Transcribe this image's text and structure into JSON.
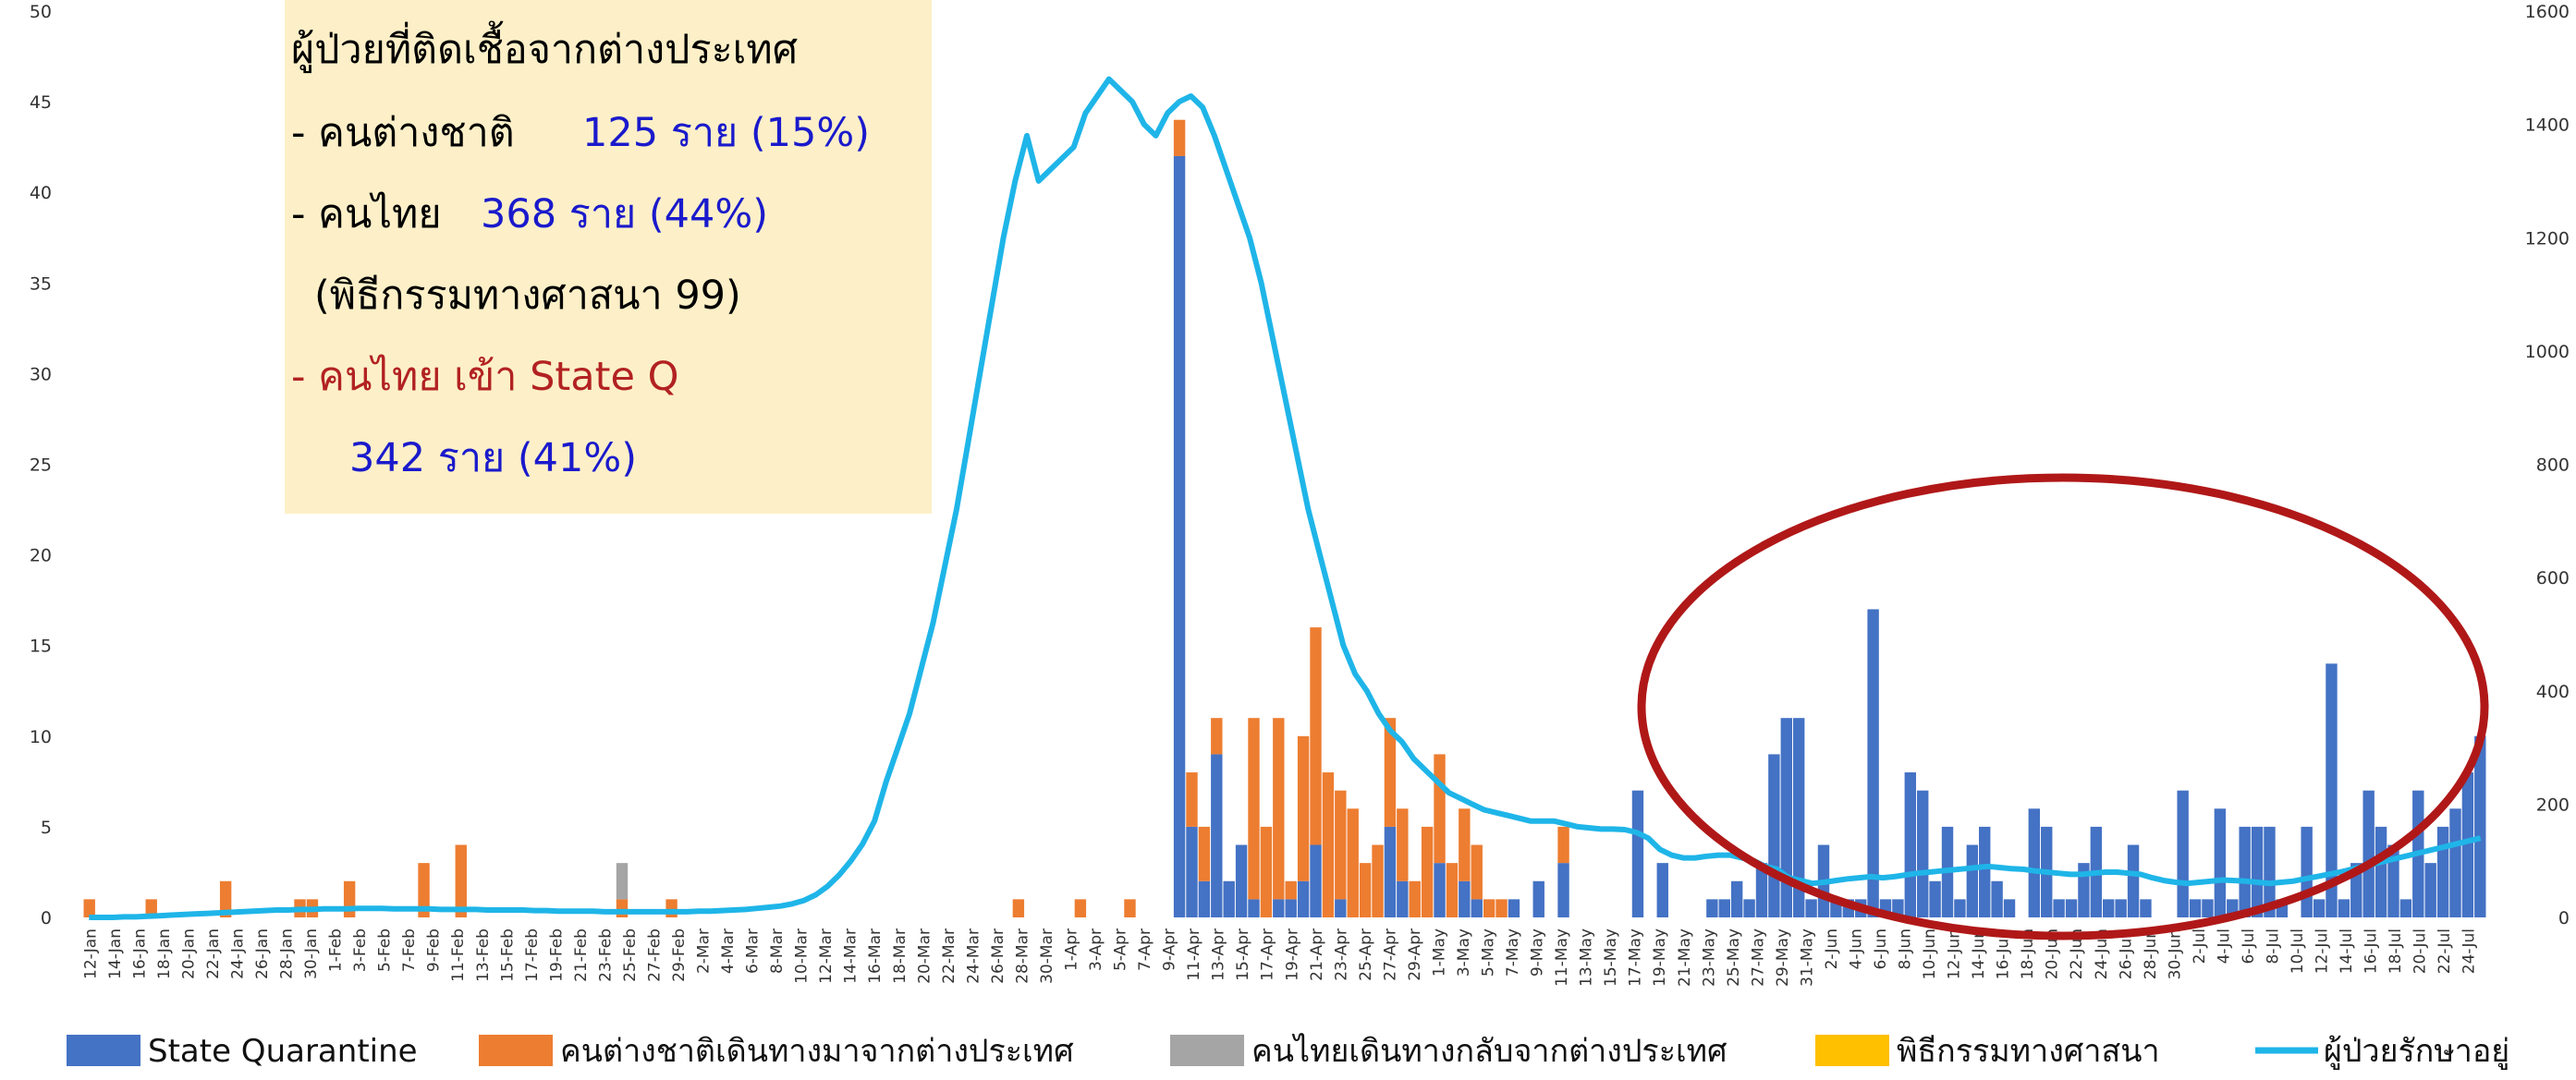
{
  "chart_data": {
    "type": "bar",
    "stacked": true,
    "grid": false,
    "y_left": {
      "min": 0,
      "max": 50,
      "ticks": [
        0,
        5,
        10,
        15,
        20,
        25,
        30,
        35,
        40,
        45,
        50
      ]
    },
    "y_right": {
      "min": 0,
      "max": 1600,
      "ticks": [
        0,
        200,
        400,
        600,
        800,
        1000,
        1200,
        1400,
        1600
      ]
    },
    "x_start": "12-Jan",
    "x_tick_labels": [
      "12-Jan",
      "14-Jan",
      "16-Jan",
      "18-Jan",
      "20-Jan",
      "22-Jan",
      "24-Jan",
      "26-Jan",
      "28-Jan",
      "30-Jan",
      "1-Feb",
      "3-Feb",
      "5-Feb",
      "7-Feb",
      "9-Feb",
      "11-Feb",
      "13-Feb",
      "15-Feb",
      "17-Feb",
      "19-Feb",
      "21-Feb",
      "23-Feb",
      "25-Feb",
      "27-Feb",
      "29-Feb",
      "2-Mar",
      "4-Mar",
      "6-Mar",
      "8-Mar",
      "10-Mar",
      "12-Mar",
      "14-Mar",
      "16-Mar",
      "18-Mar",
      "20-Mar",
      "22-Mar",
      "24-Mar",
      "26-Mar",
      "28-Mar",
      "30-Mar",
      "1-Apr",
      "3-Apr",
      "5-Apr",
      "7-Apr",
      "9-Apr",
      "11-Apr",
      "13-Apr",
      "15-Apr",
      "17-Apr",
      "19-Apr",
      "21-Apr",
      "23-Apr",
      "25-Apr",
      "27-Apr",
      "29-Apr",
      "1-May",
      "3-May",
      "5-May",
      "7-May",
      "9-May",
      "11-May",
      "13-May",
      "15-May",
      "17-May",
      "19-May",
      "21-May",
      "23-May",
      "25-May",
      "27-May",
      "29-May",
      "31-May",
      "2-Jun",
      "4-Jun",
      "6-Jun",
      "8-Jun",
      "10-Jun",
      "12-Jun",
      "14-Jun",
      "16-Jun",
      "18-Jun",
      "20-Jun",
      "22-Jun",
      "24-Jun",
      "26-Jun",
      "28-Jun",
      "30-Jun",
      "2-Jul",
      "4-Jul",
      "6-Jul",
      "8-Jul",
      "10-Jul",
      "12-Jul",
      "14-Jul",
      "16-Jul",
      "18-Jul",
      "20-Jul",
      "22-Jul",
      "24-Jul"
    ],
    "series": [
      {
        "name": "State Quarantine",
        "color": "#4472C4",
        "values": [
          0,
          0,
          0,
          0,
          0,
          0,
          0,
          0,
          0,
          0,
          0,
          0,
          0,
          0,
          0,
          0,
          0,
          0,
          0,
          0,
          0,
          0,
          0,
          0,
          0,
          0,
          0,
          0,
          0,
          0,
          0,
          0,
          0,
          0,
          0,
          0,
          0,
          0,
          0,
          0,
          0,
          0,
          0,
          0,
          0,
          0,
          0,
          0,
          0,
          0,
          0,
          0,
          0,
          0,
          0,
          0,
          0,
          0,
          0,
          0,
          0,
          0,
          0,
          0,
          0,
          0,
          0,
          0,
          0,
          0,
          0,
          0,
          0,
          0,
          0,
          0,
          0,
          0,
          0,
          0,
          0,
          0,
          0,
          0,
          0,
          0,
          0,
          0,
          42,
          5,
          2,
          9,
          2,
          4,
          1,
          0,
          1,
          1,
          2,
          4,
          0,
          1,
          0,
          0,
          0,
          5,
          2,
          0,
          0,
          3,
          0,
          2,
          1,
          0,
          0,
          1,
          0,
          2,
          0,
          3,
          0,
          0,
          0,
          0,
          0,
          7,
          0,
          3,
          0,
          0,
          0,
          1,
          1,
          2,
          1,
          3,
          9,
          11,
          11,
          1,
          4,
          1,
          1,
          1,
          17,
          1,
          1,
          8,
          7,
          2,
          5,
          1,
          4,
          5,
          2,
          1,
          0,
          6,
          5,
          1,
          1,
          3,
          5,
          1,
          1,
          4,
          1,
          0,
          0,
          7,
          1,
          1,
          6,
          1,
          5,
          5,
          5,
          1,
          0,
          5,
          1,
          14,
          1,
          3,
          7,
          5,
          4,
          1,
          7,
          3,
          5,
          6,
          8,
          10
        ]
      },
      {
        "name": "คนต่างชาติเดินทางมาจากต่างประเทศ",
        "color": "#ED7D31",
        "values": [
          1,
          0,
          0,
          0,
          0,
          1,
          0,
          0,
          0,
          0,
          0,
          2,
          0,
          0,
          0,
          0,
          0,
          1,
          1,
          0,
          0,
          2,
          0,
          0,
          0,
          0,
          0,
          3,
          0,
          0,
          4,
          0,
          0,
          0,
          0,
          0,
          0,
          0,
          0,
          0,
          0,
          0,
          0,
          1,
          0,
          0,
          0,
          1,
          0,
          0,
          0,
          0,
          0,
          0,
          0,
          0,
          0,
          0,
          0,
          0,
          0,
          0,
          0,
          0,
          0,
          0,
          0,
          0,
          0,
          0,
          0,
          0,
          0,
          0,
          0,
          1,
          0,
          0,
          0,
          0,
          1,
          0,
          0,
          0,
          1,
          0,
          0,
          0,
          2,
          3,
          3,
          2,
          0,
          0,
          10,
          5,
          10,
          1,
          8,
          12,
          8,
          6,
          6,
          3,
          4,
          6,
          4,
          2,
          5,
          6,
          3,
          4,
          3,
          1,
          1,
          0,
          0,
          0,
          0,
          2,
          0,
          0,
          0,
          0,
          0,
          0,
          0,
          0,
          0,
          0,
          0,
          0,
          0,
          0,
          0,
          0,
          0,
          0,
          0,
          0,
          0,
          0,
          0,
          0,
          0,
          0,
          0,
          0,
          0,
          0,
          0,
          0,
          0,
          0,
          0,
          0,
          0,
          0,
          0,
          0,
          0,
          0,
          0,
          0,
          0,
          0,
          0,
          0,
          0,
          0,
          0,
          0,
          0,
          0,
          0,
          0,
          0,
          0,
          0,
          0,
          0,
          0,
          0,
          0,
          0,
          0,
          0,
          0,
          0,
          0,
          0,
          0,
          0,
          0,
          0,
          0,
          0,
          0,
          0,
          0,
          0,
          0,
          0,
          0,
          0
        ]
      },
      {
        "name": "คนไทยเดินทางกลับจากต่างประเทศ",
        "color": "#A5A5A5",
        "values": [
          0,
          0,
          0,
          0,
          0,
          0,
          0,
          0,
          0,
          0,
          0,
          0,
          0,
          0,
          0,
          0,
          0,
          0,
          0,
          0,
          0,
          0,
          0,
          0,
          0,
          0,
          0,
          0,
          0,
          0,
          0,
          0,
          0,
          0,
          0,
          0,
          0,
          0,
          0,
          0,
          0,
          0,
          0,
          2,
          0,
          0,
          0,
          0,
          0,
          0,
          0,
          0,
          0,
          0,
          0,
          0,
          0,
          0,
          0,
          0,
          0,
          0,
          0,
          0,
          0,
          0,
          0,
          0,
          0,
          0,
          0,
          0,
          0,
          0,
          0,
          0,
          0,
          0,
          0,
          0,
          0,
          0,
          0,
          0,
          0,
          0,
          0,
          0,
          0,
          0,
          0,
          0,
          0,
          0,
          0,
          0,
          0,
          0,
          0,
          0,
          0,
          0,
          0,
          0,
          0,
          0,
          0,
          0,
          0,
          0,
          0,
          0,
          0,
          0,
          0,
          0,
          0,
          0,
          0,
          0,
          0,
          0,
          0,
          0,
          0,
          0,
          0,
          0,
          0,
          0,
          0,
          0,
          0,
          0,
          0,
          0,
          0,
          0,
          0,
          0,
          0,
          0,
          0,
          0,
          0,
          0,
          0,
          0,
          0,
          0,
          0,
          0,
          0,
          0,
          0,
          0,
          0,
          0,
          0,
          0,
          0,
          0,
          0,
          0,
          0,
          0,
          0,
          0,
          0,
          0,
          0,
          0,
          0,
          0,
          0,
          0,
          0,
          0,
          0,
          0,
          0,
          0,
          0,
          0,
          0,
          0,
          0,
          0,
          0,
          0,
          0,
          0,
          0,
          0,
          0,
          0,
          0,
          0,
          0,
          0,
          0,
          0,
          0,
          0,
          0
        ]
      },
      {
        "name": "พิธีกรรมทางศาสนา",
        "color": "#FFC000",
        "values": [
          0,
          0,
          0,
          0,
          0,
          0,
          0,
          0,
          0,
          0,
          0,
          0,
          0,
          0,
          0,
          0,
          0,
          0,
          0,
          0,
          0,
          0,
          0,
          0,
          0,
          0,
          0,
          0,
          0,
          0,
          0,
          0,
          0,
          0,
          0,
          0,
          0,
          0,
          0,
          0,
          0,
          0,
          0,
          0,
          0,
          0,
          0,
          0,
          0,
          0,
          0,
          0,
          0,
          0,
          0,
          0,
          0,
          0,
          0,
          0,
          0,
          0,
          0,
          0,
          0,
          0,
          0,
          0,
          0,
          0,
          0,
          0,
          0,
          0,
          0,
          0,
          0,
          0,
          0,
          0,
          0,
          0,
          0,
          0,
          0,
          0,
          0,
          0,
          0,
          0,
          0,
          0,
          0,
          0,
          0,
          0,
          0,
          0,
          0,
          0,
          0,
          0,
          0,
          0,
          0,
          0,
          0,
          0,
          0,
          0,
          0,
          0,
          0,
          0,
          0,
          0,
          0,
          0,
          0,
          0,
          0,
          0,
          0,
          0,
          0,
          0,
          0,
          0,
          0,
          0,
          0,
          0,
          0,
          0,
          0,
          0,
          0,
          0,
          0,
          0,
          0,
          0,
          0,
          0,
          0,
          0,
          0,
          0,
          0,
          0,
          0,
          0,
          0,
          0,
          0,
          0,
          0,
          0,
          0,
          0,
          0,
          0,
          0,
          0,
          0,
          0,
          0,
          0,
          0,
          0,
          0,
          0,
          0,
          0,
          0,
          0,
          0,
          0,
          0,
          0,
          0,
          0,
          0,
          0,
          0,
          0,
          0,
          0,
          0,
          0,
          0,
          0,
          0,
          0,
          0,
          0,
          0,
          0,
          0,
          0,
          0,
          0,
          0,
          0,
          0
        ]
      },
      {
        "name": "ผู้ป่วยรักษาอยู่",
        "type": "line",
        "axis": "right",
        "color": "#1FB5E8",
        "values": [
          0,
          0,
          0,
          1,
          1,
          2,
          3,
          4,
          5,
          6,
          7,
          8,
          9,
          10,
          11,
          12,
          13,
          13,
          14,
          14,
          15,
          15,
          15,
          16,
          16,
          16,
          15,
          15,
          15,
          15,
          14,
          14,
          14,
          14,
          13,
          13,
          13,
          13,
          12,
          12,
          11,
          11,
          11,
          11,
          10,
          10,
          10,
          10,
          10,
          10,
          10,
          10,
          11,
          11,
          12,
          13,
          14,
          16,
          18,
          20,
          24,
          30,
          40,
          55,
          75,
          100,
          130,
          170,
          240,
          300,
          360,
          440,
          520,
          620,
          720,
          840,
          960,
          1080,
          1200,
          1300,
          1380,
          1300,
          1320,
          1340,
          1360,
          1420,
          1450,
          1480,
          1460,
          1440,
          1400,
          1380,
          1420,
          1440,
          1450,
          1430,
          1380,
          1320,
          1260,
          1200,
          1120,
          1020,
          920,
          820,
          720,
          640,
          560,
          480,
          430,
          400,
          360,
          330,
          310,
          280,
          260,
          240,
          220,
          210,
          200,
          190,
          185,
          180,
          175,
          170,
          170,
          170,
          165,
          160,
          158,
          156,
          156,
          155,
          150,
          140,
          120,
          110,
          105,
          105,
          108,
          110,
          110,
          105,
          100,
          90,
          85,
          70,
          65,
          60,
          62,
          65,
          68,
          70,
          72,
          70,
          72,
          75,
          78,
          80,
          82,
          84,
          86,
          88,
          90,
          88,
          86,
          85,
          82,
          80,
          78,
          76,
          76,
          78,
          80,
          80,
          78,
          76,
          70,
          65,
          62,
          60,
          62,
          64,
          66,
          65,
          64,
          62,
          60,
          62,
          64,
          68,
          72,
          76,
          80,
          85,
          90,
          95,
          100,
          105,
          110,
          115,
          120,
          125,
          130,
          135,
          140
        ]
      }
    ],
    "box": {
      "title": "ผู้ป่วยที่ติดเชื้อจากต่างประเทศ",
      "lines": [
        {
          "text": "- คนต่างชาติ",
          "value": "125 ราย (15%)"
        },
        {
          "text": "- คนไทย",
          "value": "368 ราย  (44%)"
        },
        {
          "text": "(พิธีกรรมทางศาสนา 99)",
          "value": ""
        },
        {
          "text": "- คนไทย เข้า State Q",
          "value": ""
        },
        {
          "text": "",
          "value": "342 ราย  (41%)"
        }
      ]
    },
    "legend": {
      "position": "bottom",
      "items": [
        {
          "label": "State Quarantine",
          "color": "#4472C4",
          "shape": "box"
        },
        {
          "label": "คนต่างชาติเดินทางมาจากต่างประเทศ",
          "color": "#ED7D31",
          "shape": "box"
        },
        {
          "label": "คนไทยเดินทางกลับจากต่างประเทศ",
          "color": "#A5A5A5",
          "shape": "box"
        },
        {
          "label": "พิธีกรรมทางศาสนา",
          "color": "#FFC000",
          "shape": "box"
        },
        {
          "label": "ผู้ป่วยรักษาอยู่",
          "color": "#1FB5E8",
          "shape": "line"
        }
      ]
    }
  }
}
